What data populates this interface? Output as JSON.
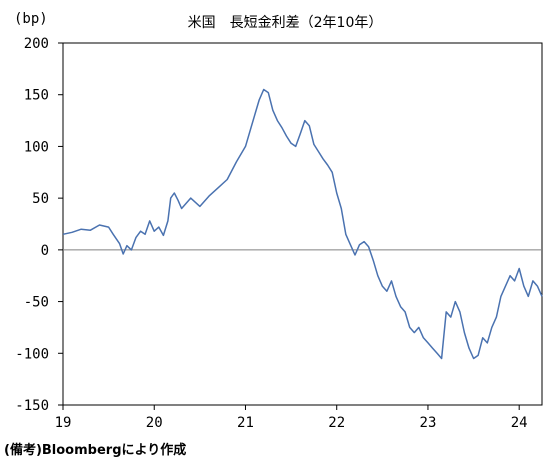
{
  "chart_data": {
    "type": "line",
    "title": "米国　長短金利差（2年10年）",
    "unit_label": "(bp)",
    "ylim": [
      -150,
      200
    ],
    "yticks": [
      200,
      150,
      100,
      50,
      0,
      -50,
      -100,
      -150
    ],
    "xlim": [
      19,
      24.25
    ],
    "xticks": [
      19,
      20,
      21,
      22,
      23,
      24
    ],
    "zero_line": true,
    "grid": false,
    "series": [
      {
        "color": "#4a72b0",
        "x": [
          19.0,
          19.1,
          19.2,
          19.3,
          19.4,
          19.5,
          19.55,
          19.62,
          19.66,
          19.7,
          19.75,
          19.8,
          19.85,
          19.9,
          19.95,
          20.0,
          20.05,
          20.1,
          20.15,
          20.18,
          20.22,
          20.26,
          20.3,
          20.4,
          20.5,
          20.6,
          20.7,
          20.8,
          20.9,
          21.0,
          21.1,
          21.15,
          21.2,
          21.25,
          21.3,
          21.35,
          21.4,
          21.45,
          21.5,
          21.55,
          21.6,
          21.65,
          21.7,
          21.75,
          21.8,
          21.85,
          21.9,
          21.95,
          22.0,
          22.05,
          22.1,
          22.15,
          22.2,
          22.25,
          22.3,
          22.35,
          22.4,
          22.45,
          22.5,
          22.55,
          22.6,
          22.65,
          22.7,
          22.75,
          22.8,
          22.85,
          22.9,
          22.95,
          23.0,
          23.05,
          23.1,
          23.15,
          23.2,
          23.25,
          23.3,
          23.35,
          23.4,
          23.45,
          23.5,
          23.55,
          23.6,
          23.65,
          23.7,
          23.75,
          23.8,
          23.85,
          23.9,
          23.95,
          24.0,
          24.05,
          24.1,
          24.15,
          24.2,
          24.25
        ],
        "y": [
          15,
          17,
          20,
          19,
          24,
          22,
          15,
          6,
          -4,
          4,
          0,
          12,
          18,
          15,
          28,
          18,
          22,
          14,
          28,
          50,
          55,
          48,
          40,
          50,
          42,
          52,
          60,
          68,
          85,
          100,
          130,
          145,
          155,
          152,
          135,
          125,
          118,
          110,
          103,
          100,
          112,
          125,
          120,
          102,
          95,
          88,
          82,
          75,
          55,
          40,
          15,
          5,
          -5,
          5,
          8,
          3,
          -10,
          -25,
          -35,
          -40,
          -30,
          -45,
          -55,
          -60,
          -75,
          -80,
          -75,
          -85,
          -90,
          -95,
          -100,
          -105,
          -60,
          -65,
          -50,
          -60,
          -80,
          -95,
          -105,
          -102,
          -85,
          -90,
          -75,
          -65,
          -45,
          -35,
          -25,
          -30,
          -18,
          -35,
          -45,
          -30,
          -35,
          -45
        ]
      }
    ]
  },
  "footnote": "(備考)Bloombergにより作成"
}
